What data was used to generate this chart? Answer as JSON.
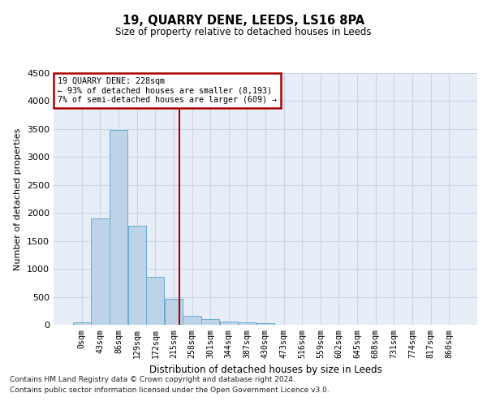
{
  "title": "19, QUARRY DENE, LEEDS, LS16 8PA",
  "subtitle": "Size of property relative to detached houses in Leeds",
  "xlabel": "Distribution of detached houses by size in Leeds",
  "ylabel": "Number of detached properties",
  "bar_labels": [
    "0sqm",
    "43sqm",
    "86sqm",
    "129sqm",
    "172sqm",
    "215sqm",
    "258sqm",
    "301sqm",
    "344sqm",
    "387sqm",
    "430sqm",
    "473sqm",
    "516sqm",
    "559sqm",
    "602sqm",
    "645sqm",
    "688sqm",
    "731sqm",
    "774sqm",
    "817sqm",
    "860sqm"
  ],
  "bar_values": [
    50,
    1900,
    3490,
    1770,
    850,
    460,
    165,
    95,
    60,
    50,
    30,
    0,
    0,
    0,
    0,
    0,
    0,
    0,
    0,
    0,
    0
  ],
  "bar_color": "#bdd4e8",
  "bar_edgecolor": "#6aaad4",
  "vline_x": 5.302,
  "vline_color": "#aa0000",
  "ylim": [
    0,
    4500
  ],
  "yticks": [
    0,
    500,
    1000,
    1500,
    2000,
    2500,
    3000,
    3500,
    4000,
    4500
  ],
  "annotation_line1": "19 QUARRY DENE: 228sqm",
  "annotation_line2": "← 93% of detached houses are smaller (8,193)",
  "annotation_line3": "7% of semi-detached houses are larger (609) →",
  "annotation_box_color": "#aa0000",
  "grid_color": "#c8d4e8",
  "background_color": "#e8eef8",
  "footnote1": "Contains HM Land Registry data © Crown copyright and database right 2024.",
  "footnote2": "Contains public sector information licensed under the Open Government Licence v3.0."
}
